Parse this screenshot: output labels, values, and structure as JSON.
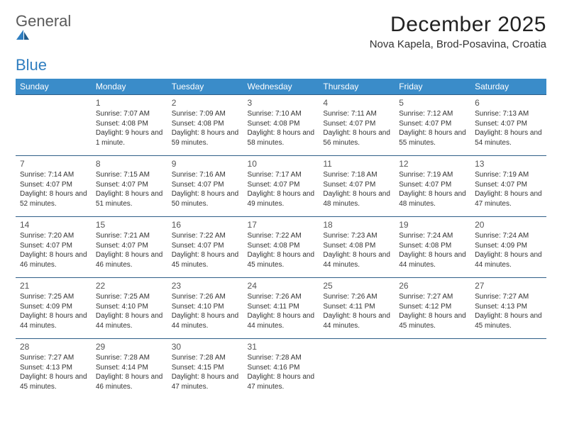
{
  "logo": {
    "line1": "General",
    "line2": "Blue"
  },
  "title": "December 2025",
  "location": "Nova Kapela, Brod-Posavina, Croatia",
  "day_headers": [
    "Sunday",
    "Monday",
    "Tuesday",
    "Wednesday",
    "Thursday",
    "Friday",
    "Saturday"
  ],
  "colors": {
    "header_bg": "#3a8cc9",
    "header_text": "#ffffff",
    "row_border": "#2f5f88",
    "logo_gray": "#5a5a5a",
    "logo_blue": "#2f7ec0"
  },
  "grid": {
    "rows": 5,
    "cols": 7,
    "first_day_col": 1,
    "last_day": 31
  },
  "days": {
    "1": {
      "sunrise": "7:07 AM",
      "sunset": "4:08 PM",
      "daylight": "9 hours and 1 minute."
    },
    "2": {
      "sunrise": "7:09 AM",
      "sunset": "4:08 PM",
      "daylight": "8 hours and 59 minutes."
    },
    "3": {
      "sunrise": "7:10 AM",
      "sunset": "4:08 PM",
      "daylight": "8 hours and 58 minutes."
    },
    "4": {
      "sunrise": "7:11 AM",
      "sunset": "4:07 PM",
      "daylight": "8 hours and 56 minutes."
    },
    "5": {
      "sunrise": "7:12 AM",
      "sunset": "4:07 PM",
      "daylight": "8 hours and 55 minutes."
    },
    "6": {
      "sunrise": "7:13 AM",
      "sunset": "4:07 PM",
      "daylight": "8 hours and 54 minutes."
    },
    "7": {
      "sunrise": "7:14 AM",
      "sunset": "4:07 PM",
      "daylight": "8 hours and 52 minutes."
    },
    "8": {
      "sunrise": "7:15 AM",
      "sunset": "4:07 PM",
      "daylight": "8 hours and 51 minutes."
    },
    "9": {
      "sunrise": "7:16 AM",
      "sunset": "4:07 PM",
      "daylight": "8 hours and 50 minutes."
    },
    "10": {
      "sunrise": "7:17 AM",
      "sunset": "4:07 PM",
      "daylight": "8 hours and 49 minutes."
    },
    "11": {
      "sunrise": "7:18 AM",
      "sunset": "4:07 PM",
      "daylight": "8 hours and 48 minutes."
    },
    "12": {
      "sunrise": "7:19 AM",
      "sunset": "4:07 PM",
      "daylight": "8 hours and 48 minutes."
    },
    "13": {
      "sunrise": "7:19 AM",
      "sunset": "4:07 PM",
      "daylight": "8 hours and 47 minutes."
    },
    "14": {
      "sunrise": "7:20 AM",
      "sunset": "4:07 PM",
      "daylight": "8 hours and 46 minutes."
    },
    "15": {
      "sunrise": "7:21 AM",
      "sunset": "4:07 PM",
      "daylight": "8 hours and 46 minutes."
    },
    "16": {
      "sunrise": "7:22 AM",
      "sunset": "4:07 PM",
      "daylight": "8 hours and 45 minutes."
    },
    "17": {
      "sunrise": "7:22 AM",
      "sunset": "4:08 PM",
      "daylight": "8 hours and 45 minutes."
    },
    "18": {
      "sunrise": "7:23 AM",
      "sunset": "4:08 PM",
      "daylight": "8 hours and 44 minutes."
    },
    "19": {
      "sunrise": "7:24 AM",
      "sunset": "4:08 PM",
      "daylight": "8 hours and 44 minutes."
    },
    "20": {
      "sunrise": "7:24 AM",
      "sunset": "4:09 PM",
      "daylight": "8 hours and 44 minutes."
    },
    "21": {
      "sunrise": "7:25 AM",
      "sunset": "4:09 PM",
      "daylight": "8 hours and 44 minutes."
    },
    "22": {
      "sunrise": "7:25 AM",
      "sunset": "4:10 PM",
      "daylight": "8 hours and 44 minutes."
    },
    "23": {
      "sunrise": "7:26 AM",
      "sunset": "4:10 PM",
      "daylight": "8 hours and 44 minutes."
    },
    "24": {
      "sunrise": "7:26 AM",
      "sunset": "4:11 PM",
      "daylight": "8 hours and 44 minutes."
    },
    "25": {
      "sunrise": "7:26 AM",
      "sunset": "4:11 PM",
      "daylight": "8 hours and 44 minutes."
    },
    "26": {
      "sunrise": "7:27 AM",
      "sunset": "4:12 PM",
      "daylight": "8 hours and 45 minutes."
    },
    "27": {
      "sunrise": "7:27 AM",
      "sunset": "4:13 PM",
      "daylight": "8 hours and 45 minutes."
    },
    "28": {
      "sunrise": "7:27 AM",
      "sunset": "4:13 PM",
      "daylight": "8 hours and 45 minutes."
    },
    "29": {
      "sunrise": "7:28 AM",
      "sunset": "4:14 PM",
      "daylight": "8 hours and 46 minutes."
    },
    "30": {
      "sunrise": "7:28 AM",
      "sunset": "4:15 PM",
      "daylight": "8 hours and 47 minutes."
    },
    "31": {
      "sunrise": "7:28 AM",
      "sunset": "4:16 PM",
      "daylight": "8 hours and 47 minutes."
    }
  },
  "labels": {
    "sunrise": "Sunrise:",
    "sunset": "Sunset:",
    "daylight": "Daylight:"
  }
}
